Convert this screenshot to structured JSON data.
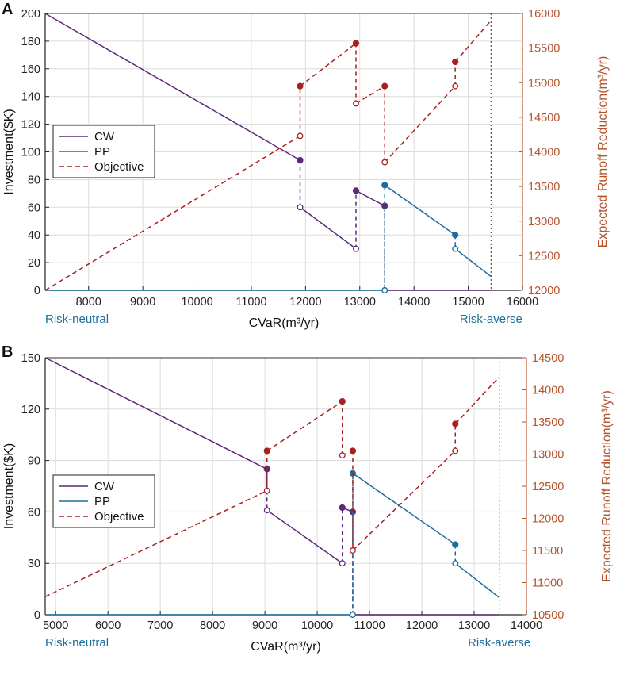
{
  "colors": {
    "cw": "#5b2a7a",
    "pp": "#1c6f9a",
    "objective": "#a7201f",
    "right_axis": "#b5532c",
    "note": "#1c6f9a"
  },
  "chart_data": [
    {
      "type": "line",
      "panel_label": "A",
      "xlabel": "CVaR(m³/yr)",
      "ylabel": "Investment($K)",
      "y2label": "Expected Runoff Reduction(m³/yr)",
      "xlim": [
        7200,
        16000
      ],
      "ylim": [
        0,
        200
      ],
      "y2lim": [
        12000,
        16000
      ],
      "xticks": [
        8000,
        9000,
        10000,
        11000,
        12000,
        13000,
        14000,
        15000,
        16000
      ],
      "yticks": [
        0,
        20,
        40,
        60,
        80,
        100,
        120,
        140,
        160,
        180,
        200
      ],
      "y2ticks": [
        12000,
        12500,
        13000,
        13500,
        14000,
        14500,
        15000,
        15500,
        16000
      ],
      "grid": true,
      "risk_neutral_label": "Risk-neutral",
      "risk_averse_label": "Risk-averse",
      "end_x": 15420,
      "legend": {
        "position": "center-left",
        "entries": [
          "CW",
          "PP",
          "Objective"
        ]
      },
      "series": [
        {
          "name": "CW",
          "axis": "left",
          "segments": [
            [
              [
                7200,
                200
              ],
              [
                11900,
                94
              ]
            ],
            [
              [
                11900,
                60
              ],
              [
                12930,
                30
              ]
            ],
            [
              [
                12930,
                72
              ],
              [
                13460,
                61
              ]
            ],
            [
              [
                13460,
                0
              ],
              [
                15420,
                0
              ]
            ]
          ],
          "jumps": [
            [
              11900,
              94,
              60
            ],
            [
              12930,
              30,
              72
            ],
            [
              13460,
              61,
              0
            ]
          ],
          "filled": [
            [
              11900,
              94
            ],
            [
              12930,
              72
            ],
            [
              13460,
              61
            ]
          ],
          "open": [
            [
              11900,
              60
            ],
            [
              12930,
              30
            ],
            [
              13460,
              0
            ]
          ]
        },
        {
          "name": "PP",
          "axis": "left",
          "segments": [
            [
              [
                7200,
                0
              ],
              [
                13460,
                0
              ]
            ],
            [
              [
                13460,
                76
              ],
              [
                14760,
                40
              ]
            ],
            [
              [
                14760,
                30
              ],
              [
                15420,
                10
              ]
            ]
          ],
          "jumps": [
            [
              13460,
              0,
              76
            ],
            [
              14760,
              40,
              30
            ]
          ],
          "filled": [
            [
              13460,
              76
            ],
            [
              14760,
              40
            ]
          ],
          "open": [
            [
              13460,
              0
            ],
            [
              14760,
              30
            ]
          ]
        },
        {
          "name": "Objective",
          "axis": "right",
          "segments": [
            [
              [
                7200,
                12000
              ],
              [
                11900,
                14230
              ]
            ],
            [
              [
                11900,
                14950
              ],
              [
                12930,
                15570
              ]
            ],
            [
              [
                12930,
                14700
              ],
              [
                13460,
                14950
              ]
            ],
            [
              [
                13460,
                13850
              ],
              [
                14760,
                14950
              ]
            ],
            [
              [
                14760,
                15300
              ],
              [
                15420,
                15900
              ]
            ]
          ],
          "jumps": [
            [
              11900,
              14230,
              14950
            ],
            [
              12930,
              15570,
              14700
            ],
            [
              13460,
              14950,
              13850
            ],
            [
              14760,
              14950,
              15300
            ]
          ],
          "filled": [
            [
              11900,
              14950
            ],
            [
              12930,
              15570
            ],
            [
              13460,
              14950
            ],
            [
              14760,
              15300
            ]
          ],
          "open": [
            [
              11900,
              14230
            ],
            [
              12930,
              14700
            ],
            [
              13460,
              13850
            ],
            [
              14760,
              14950
            ]
          ]
        }
      ]
    },
    {
      "type": "line",
      "panel_label": "B",
      "xlabel": "CVaR(m³/yr)",
      "ylabel": "Investment($K)",
      "y2label": "Expected Runoff Reduction(m³/yr)",
      "xlim": [
        4800,
        14000
      ],
      "ylim": [
        0,
        150
      ],
      "y2lim": [
        10500,
        14500
      ],
      "xticks": [
        5000,
        6000,
        7000,
        8000,
        9000,
        10000,
        11000,
        12000,
        13000,
        14000
      ],
      "yticks": [
        0,
        30,
        60,
        90,
        120,
        150
      ],
      "y2ticks": [
        10500,
        11000,
        11500,
        12000,
        12500,
        13000,
        13500,
        14000,
        14500
      ],
      "grid": true,
      "risk_neutral_label": "Risk-neutral",
      "risk_averse_label": "Risk-averse",
      "end_x": 13480,
      "legend": {
        "position": "center-left",
        "entries": [
          "CW",
          "PP",
          "Objective"
        ]
      },
      "series": [
        {
          "name": "CW",
          "axis": "left",
          "segments": [
            [
              [
                4800,
                150
              ],
              [
                9040,
                85
              ]
            ],
            [
              [
                9040,
                61
              ],
              [
                10480,
                30
              ]
            ],
            [
              [
                10480,
                62.5
              ],
              [
                10680,
                60
              ]
            ],
            [
              [
                10680,
                0
              ],
              [
                13480,
                0
              ]
            ]
          ],
          "jumps": [
            [
              9040,
              85,
              61
            ],
            [
              10480,
              30,
              62.5
            ],
            [
              10680,
              60,
              0
            ]
          ],
          "filled": [
            [
              9040,
              85
            ],
            [
              10480,
              62.5
            ],
            [
              10680,
              60
            ]
          ],
          "open": [
            [
              9040,
              61
            ],
            [
              10480,
              30
            ],
            [
              10680,
              0
            ]
          ]
        },
        {
          "name": "PP",
          "axis": "left",
          "segments": [
            [
              [
                4800,
                0
              ],
              [
                10680,
                0
              ]
            ],
            [
              [
                10680,
                82.5
              ],
              [
                12640,
                41
              ]
            ],
            [
              [
                12640,
                30
              ],
              [
                13480,
                10
              ]
            ]
          ],
          "jumps": [
            [
              10680,
              0,
              82.5
            ],
            [
              12640,
              41,
              30
            ]
          ],
          "filled": [
            [
              10680,
              82.5
            ],
            [
              12640,
              41
            ]
          ],
          "open": [
            [
              10680,
              0
            ],
            [
              12640,
              30
            ]
          ]
        },
        {
          "name": "Objective",
          "axis": "right",
          "segments": [
            [
              [
                4800,
                10780
              ],
              [
                9040,
                12430
              ]
            ],
            [
              [
                9040,
                13050
              ],
              [
                10480,
                13820
              ]
            ],
            [
              [
                10480,
                12980
              ],
              [
                10680,
                13050
              ]
            ],
            [
              [
                10680,
                11500
              ],
              [
                12640,
                13050
              ]
            ],
            [
              [
                12640,
                13470
              ],
              [
                13480,
                14200
              ]
            ]
          ],
          "jumps": [
            [
              9040,
              12430,
              13050
            ],
            [
              10480,
              13820,
              12980
            ],
            [
              10680,
              13050,
              11500
            ],
            [
              12640,
              13050,
              13470
            ]
          ],
          "filled": [
            [
              9040,
              13050
            ],
            [
              10480,
              13820
            ],
            [
              10680,
              13050
            ],
            [
              12640,
              13470
            ]
          ],
          "open": [
            [
              9040,
              12430
            ],
            [
              10480,
              12980
            ],
            [
              10680,
              11500
            ],
            [
              12640,
              13050
            ]
          ]
        }
      ]
    }
  ]
}
